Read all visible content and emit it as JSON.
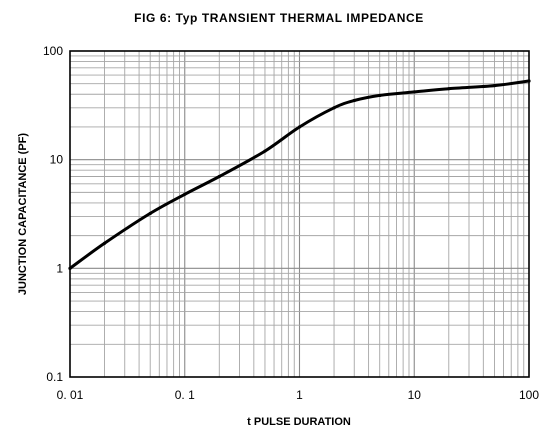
{
  "chart_data": {
    "type": "line",
    "title": "FIG 6: Typ TRANSIENT THERMAL IMPEDANCE",
    "xlabel": "t PULSE DURATION",
    "ylabel": "JUNCTION CAPACITANCE (PF)",
    "x_scale": "log",
    "y_scale": "log",
    "xlim": [
      0.01,
      100
    ],
    "ylim": [
      0.1,
      100
    ],
    "x_ticks": [
      {
        "value": 0.01,
        "label": "0. 01"
      },
      {
        "value": 0.1,
        "label": "0. 1"
      },
      {
        "value": 1,
        "label": "1"
      },
      {
        "value": 10,
        "label": "10"
      },
      {
        "value": 100,
        "label": "100"
      }
    ],
    "y_ticks": [
      {
        "value": 0.1,
        "label": "0.1"
      },
      {
        "value": 1,
        "label": "1"
      },
      {
        "value": 10,
        "label": "10"
      },
      {
        "value": 100,
        "label": "100"
      }
    ],
    "grid": true,
    "colors": {
      "line": "#000000",
      "grid": "#8a8a8a"
    },
    "series": [
      {
        "x": [
          0.01,
          0.02,
          0.05,
          0.1,
          0.2,
          0.5,
          1,
          2,
          3,
          5,
          10,
          20,
          50,
          100
        ],
        "y": [
          1.0,
          1.7,
          3.2,
          4.8,
          7.0,
          12.0,
          20.0,
          30.0,
          35.0,
          39.0,
          42.0,
          45.0,
          48.0,
          53.0
        ]
      }
    ]
  }
}
